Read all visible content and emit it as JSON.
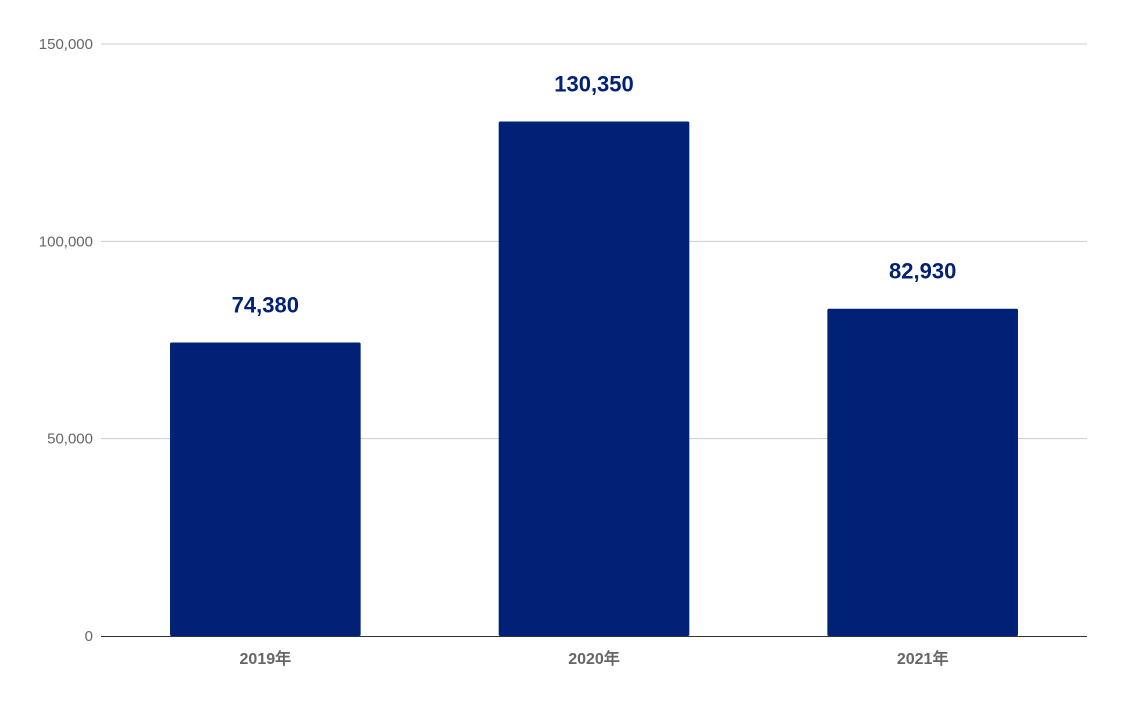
{
  "chart_data": {
    "type": "bar",
    "categories": [
      "2019年",
      "2020年",
      "2021年"
    ],
    "values": [
      74380,
      130350,
      82930
    ],
    "data_labels": [
      "74,380",
      "130,350",
      "82,930"
    ],
    "title": "",
    "xlabel": "",
    "ylabel": "",
    "ylim": [
      0,
      150000
    ],
    "yticks": [
      0,
      50000,
      100000,
      150000
    ],
    "ytick_labels": [
      "0",
      "50,000",
      "100,000",
      "150,000"
    ],
    "grid": true,
    "legend": "none",
    "colors": {
      "bar": "#002176",
      "data_label": "#002176",
      "tick_label": "#666666",
      "grid": "#cccccc",
      "axis": "#333333"
    }
  }
}
